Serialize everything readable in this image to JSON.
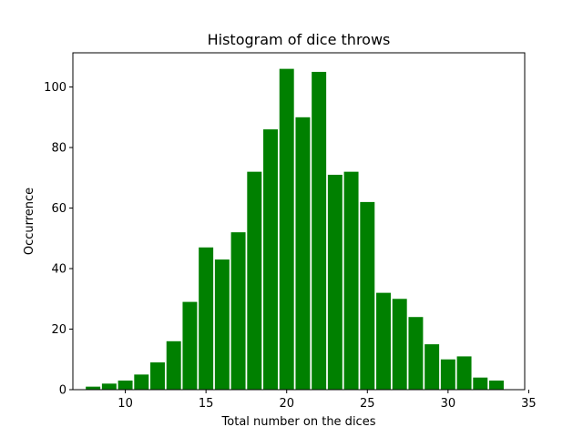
{
  "chart_data": {
    "type": "bar",
    "title": "Histogram of dice throws",
    "xlabel": "Total number on the dices",
    "ylabel": "Occurrence",
    "bar_color": "#008000",
    "xlim": [
      6.75,
      34.75
    ],
    "ylim": [
      0,
      111.3
    ],
    "xticks": [
      10,
      15,
      20,
      25,
      30,
      35
    ],
    "yticks": [
      0,
      20,
      40,
      60,
      80,
      100
    ],
    "bin_width": 1,
    "bar_width_fraction": 0.9,
    "x": [
      8,
      9,
      10,
      11,
      12,
      13,
      14,
      15,
      16,
      17,
      18,
      19,
      20,
      21,
      22,
      23,
      24,
      25,
      26,
      27,
      28,
      29,
      30,
      31,
      32,
      33
    ],
    "values": [
      1,
      2,
      3,
      5,
      9,
      16,
      29,
      47,
      43,
      52,
      72,
      86,
      106,
      90,
      105,
      71,
      72,
      62,
      32,
      30,
      24,
      15,
      10,
      11,
      4,
      3
    ],
    "grid": false,
    "legend": "none"
  }
}
